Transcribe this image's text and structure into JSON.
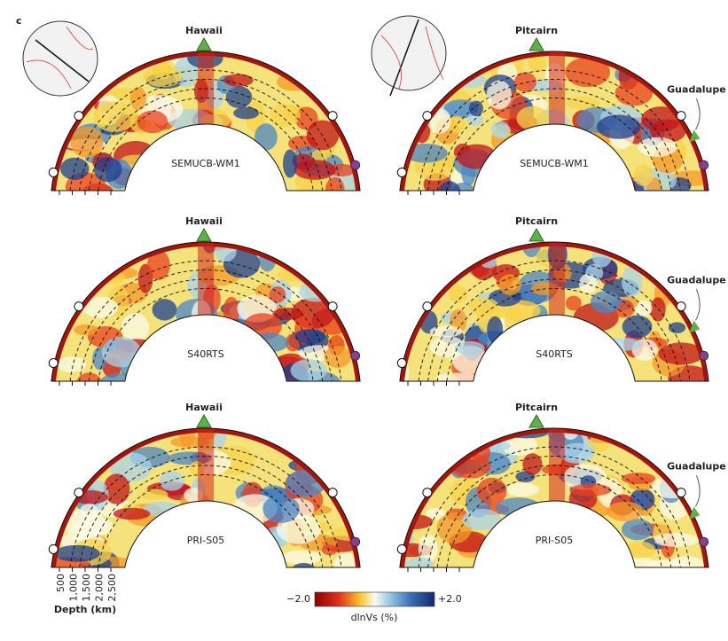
{
  "panel_label": "c",
  "panels": [
    {
      "hotspot": "Hawaii",
      "model": "SEMUCB-WM1"
    },
    {
      "hotspot": "Pitcairn",
      "second_hotspot": "Guadalupe",
      "model": "SEMUCB-WM1"
    },
    {
      "hotspot": "Hawaii",
      "model": "S40RTS"
    },
    {
      "hotspot": "Pitcairn",
      "second_hotspot": "Guadalupe",
      "model": "S40RTS"
    },
    {
      "hotspot": "Hawaii",
      "model": "PRI-S05"
    },
    {
      "hotspot": "Pitcairn",
      "second_hotspot": "Guadalupe",
      "model": "PRI-S05"
    }
  ],
  "depth_axis": {
    "ticks": [
      "500",
      "1,000",
      "1,500",
      "2,000",
      "2,500"
    ],
    "label": "Depth (km)"
  },
  "colorbar": {
    "min": "−2.0",
    "max": "+2.0",
    "label": "dlnVs (%)"
  }
}
